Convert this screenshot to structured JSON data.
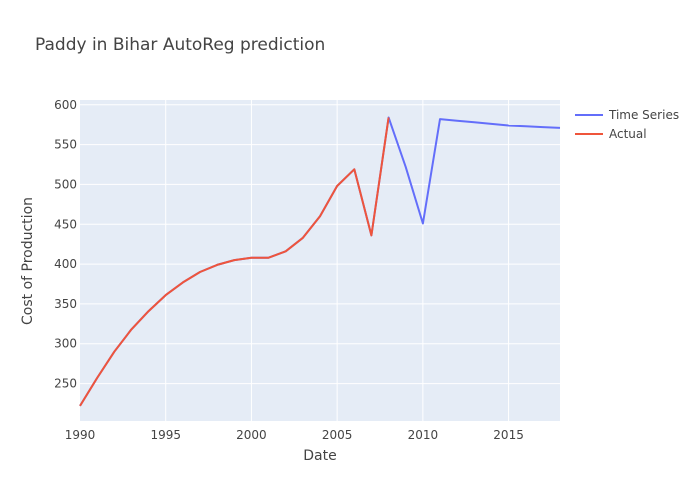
{
  "chart_data": {
    "type": "line",
    "title": "Paddy in Bihar AutoReg prediction",
    "xlabel": "Date",
    "ylabel": "Cost of Production",
    "xlim": [
      1990,
      2018
    ],
    "ylim": [
      203,
      606
    ],
    "x_ticks": [
      1990,
      1995,
      2000,
      2005,
      2010,
      2015
    ],
    "y_ticks": [
      250,
      300,
      350,
      400,
      450,
      500,
      550,
      600
    ],
    "grid": true,
    "legend_position": "top-right",
    "series": [
      {
        "name": "Time Series",
        "color": "#636efa",
        "x": [
          1990,
          1991,
          1992,
          1993,
          1994,
          1995,
          1996,
          1997,
          1998,
          1999,
          2000,
          2001,
          2002,
          2003,
          2004,
          2005,
          2006,
          2007,
          2008,
          2009,
          2010,
          2011,
          2012,
          2013,
          2014,
          2015,
          2016,
          2017,
          2018
        ],
        "y": [
          222,
          257,
          290,
          318,
          341,
          361,
          377,
          390,
          399,
          405,
          408,
          408,
          416,
          433,
          460,
          498,
          519,
          436,
          584,
          522,
          451,
          582,
          580,
          578,
          576,
          574,
          573,
          572,
          571
        ]
      },
      {
        "name": "Actual",
        "color": "#ef553b",
        "x": [
          1990,
          1991,
          1992,
          1993,
          1994,
          1995,
          1996,
          1997,
          1998,
          1999,
          2000,
          2001,
          2002,
          2003,
          2004,
          2005,
          2006,
          2007,
          2008
        ],
        "y": [
          222,
          257,
          290,
          318,
          341,
          361,
          377,
          390,
          399,
          405,
          408,
          408,
          416,
          433,
          460,
          498,
          519,
          436,
          584
        ]
      }
    ]
  }
}
